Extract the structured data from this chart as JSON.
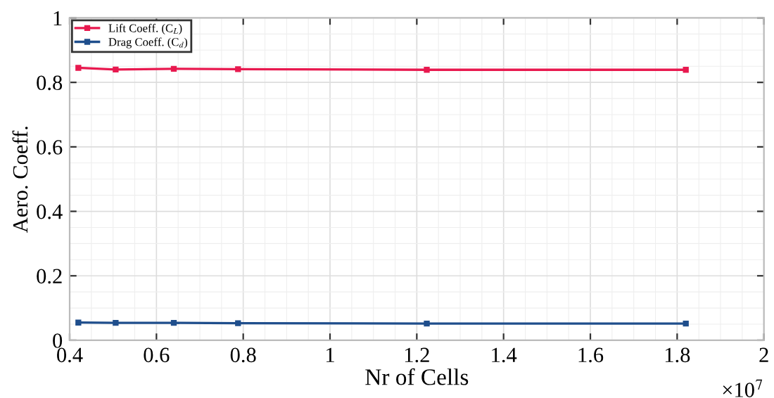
{
  "chart_data": {
    "type": "line",
    "xlabel": "Nr of Cells",
    "ylabel": "Aero. Coeff.",
    "x": [
      0.42,
      0.506,
      0.64,
      0.788,
      1.223,
      1.82
    ],
    "series": [
      {
        "name": "Lift Coeff. (C$_{L}$)",
        "color": "#e8194f",
        "values": [
          0.845,
          0.84,
          0.842,
          0.841,
          0.839,
          0.839
        ]
      },
      {
        "name": "Drag Coeff. (C$_{d}$)",
        "color": "#1f4e8c",
        "values": [
          0.055,
          0.054,
          0.054,
          0.053,
          0.052,
          0.052
        ]
      }
    ],
    "xlim": [
      0.4,
      2
    ],
    "xticks": [
      0.4,
      0.6,
      0.8,
      1,
      1.2,
      1.4,
      1.6,
      1.8,
      2
    ],
    "ylim": [
      0,
      1
    ],
    "yticks": [
      0,
      0.2,
      0.4,
      0.6,
      0.8,
      1
    ],
    "annotations": [
      "×10$^{7}$"
    ],
    "grid": true,
    "legend": "top left",
    "marker": "square",
    "line_style": "solid"
  }
}
